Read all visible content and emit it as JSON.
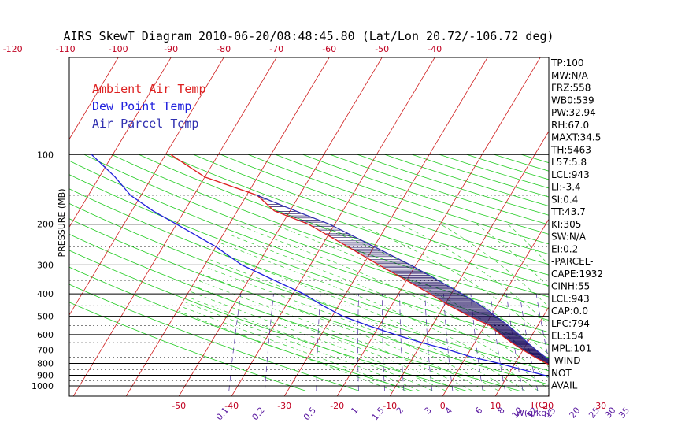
{
  "chart_data": {
    "type": "line",
    "title": "AIRS SkewT Diagram 2010-06-20/08:48:45.80 (Lat/Lon 20.72/-106.72 deg)",
    "ylabel": "PRESSURE (MB)",
    "xlabel_right": "T(C)",
    "mixing_ratio_unit": "W(g/kg)",
    "x_ticks_bottom": [
      "-50",
      "-40",
      "-30",
      "-20",
      "-10",
      "0",
      "10",
      "20",
      "30"
    ],
    "x_ticks_top": [
      "-120",
      "-110",
      "-100",
      "-90",
      "-80",
      "-70",
      "-60",
      "-50",
      "-40"
    ],
    "y_ticks": [
      "100",
      "200",
      "300",
      "400",
      "500",
      "600",
      "700",
      "800",
      "900",
      "1000"
    ],
    "mixing_ratio_labels": [
      "0.1",
      "0.2",
      "0.5",
      "1",
      "1.5",
      "2",
      "3",
      "4",
      "6",
      "8",
      "10",
      "12",
      "15",
      "20",
      "25",
      "30",
      "35"
    ],
    "legend": [
      {
        "label": "Ambient Air Temp",
        "color": "#dd2020"
      },
      {
        "label": "Dew Point Temp",
        "color": "#2020dd"
      },
      {
        "label": "Air Parcel Temp",
        "color": "#3030b0"
      }
    ],
    "series": [
      {
        "name": "Ambient Air Temp",
        "color": "#dd2020",
        "p": [
          1000,
          980,
          950,
          925,
          900,
          850,
          800,
          750,
          700,
          650,
          600,
          550,
          500,
          450,
          400,
          350,
          300,
          250,
          200,
          175,
          150,
          125,
          100
        ],
        "t": [
          29,
          27,
          25,
          23.5,
          22,
          19,
          16,
          13,
          10,
          7,
          4,
          1,
          -4,
          -9,
          -14,
          -20,
          -27,
          -35,
          -45,
          -53,
          -58,
          -70,
          -79
        ]
      },
      {
        "name": "Dew Point Temp",
        "color": "#2020dd",
        "p": [
          1000,
          980,
          950,
          925,
          900,
          850,
          800,
          750,
          700,
          650,
          600,
          550,
          500,
          450,
          400,
          350,
          300,
          250,
          200,
          175,
          150,
          125,
          100
        ],
        "t": [
          23,
          22,
          21,
          19,
          17,
          12,
          7,
          1,
          -4,
          -10,
          -16,
          -22,
          -28,
          -33,
          -38,
          -45,
          -53,
          -60,
          -70,
          -76,
          -82,
          -87,
          -94
        ]
      },
      {
        "name": "Air Parcel Temp",
        "color": "#3030b0",
        "p": [
          1000,
          980,
          950,
          925,
          900,
          850,
          800,
          750,
          700,
          650,
          600,
          550,
          500,
          450,
          400,
          350,
          300,
          250,
          200,
          175,
          150
        ],
        "t": [
          29,
          27,
          25,
          23.5,
          22,
          20,
          17.5,
          15,
          12.5,
          10,
          7.5,
          4.5,
          1,
          -3,
          -8,
          -14,
          -21,
          -30,
          -41,
          -49,
          -58
        ]
      }
    ],
    "indices": [
      "TP:100",
      "MW:N/A",
      "FRZ:558",
      "WB0:539",
      "PW:32.94",
      "RH:67.0",
      "MAXT:34.5",
      "TH:5463",
      "L57:5.8",
      "LCL:943",
      "LI:-3.4",
      "SI:0.4",
      "TT:43.7",
      "KI:305",
      "SW:N/A",
      "EI:0.2",
      "-PARCEL-",
      "CAPE:1932",
      "CINH:55",
      "LCL:943",
      "CAP:0.0",
      "LFC:794",
      "EL:154",
      "MPL:101",
      "-WIND-",
      "NOT",
      "AVAIL"
    ]
  }
}
